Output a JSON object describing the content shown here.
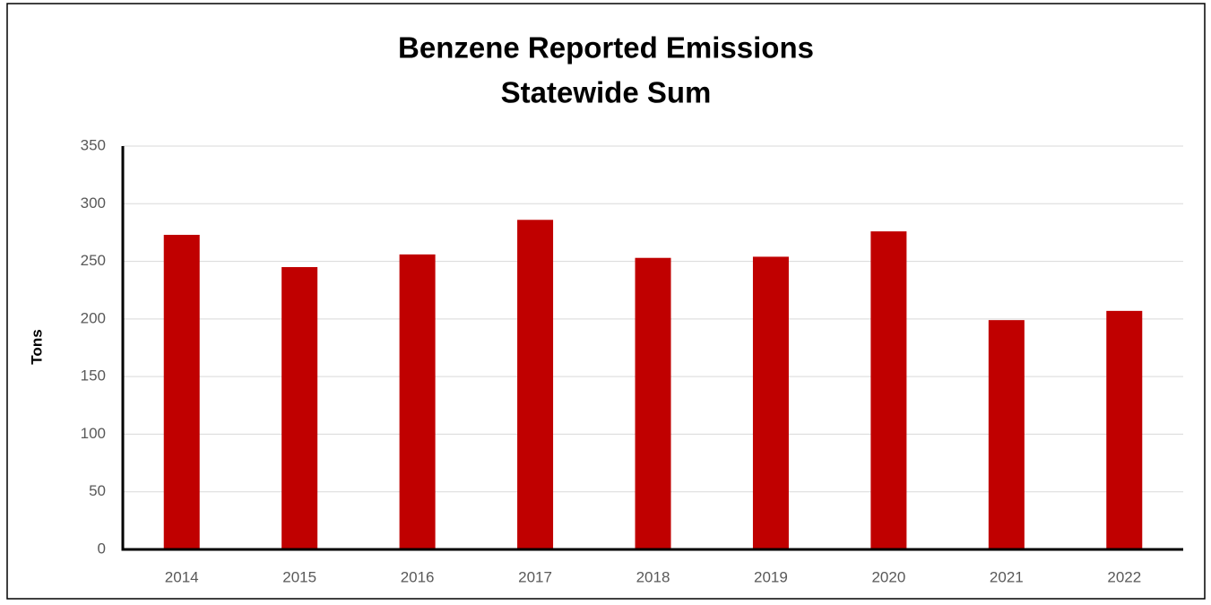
{
  "chart_data": {
    "type": "bar",
    "title": "Benzene Reported Emissions",
    "subtitle": "Statewide Sum",
    "y_label": "Tons",
    "categories": [
      "2014",
      "2015",
      "2016",
      "2017",
      "2018",
      "2019",
      "2020",
      "2021",
      "2022"
    ],
    "values": [
      273,
      245,
      256,
      286,
      253,
      254,
      276,
      199,
      207
    ],
    "color": "#c00000",
    "ylim": [
      0,
      350
    ],
    "yticks": [
      0,
      50,
      100,
      150,
      200,
      250,
      300,
      350
    ],
    "grid": true
  }
}
